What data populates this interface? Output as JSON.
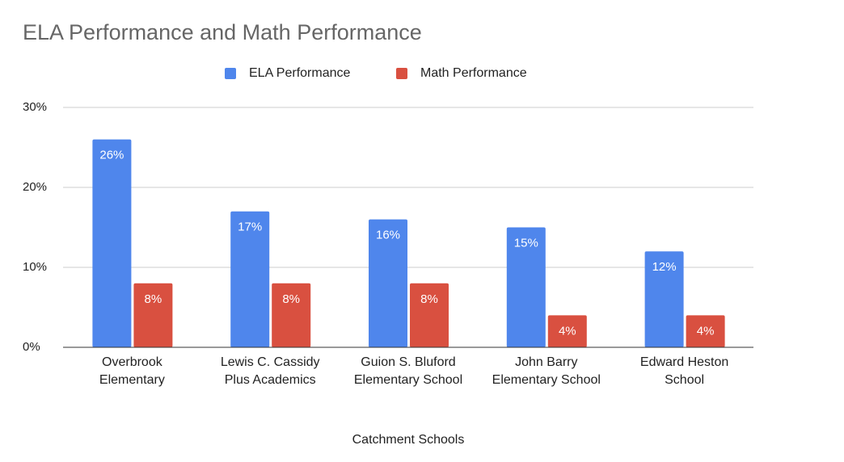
{
  "chart_data": {
    "type": "bar",
    "title": "ELA Performance and Math Performance",
    "x_label": "Catchment Schools",
    "categories": [
      "Overbrook Elementary",
      "Lewis C. Cassidy Plus Academics",
      "Guion S. Bluford Elementary School",
      "John Barry Elementary School",
      "Edward Heston School"
    ],
    "series": [
      {
        "name": "ELA Performance",
        "color": "#4f86ec",
        "values": [
          26,
          17,
          16,
          15,
          12
        ],
        "value_labels": [
          "26%",
          "17%",
          "16%",
          "15%",
          "12%"
        ]
      },
      {
        "name": "Math Performance",
        "color": "#d95040",
        "values": [
          8,
          8,
          8,
          4,
          4
        ],
        "value_labels": [
          "8%",
          "8%",
          "8%",
          "4%",
          "4%"
        ]
      }
    ],
    "ylim": [
      0,
      30
    ],
    "yticks": [
      {
        "value": 0,
        "label": "0%"
      },
      {
        "value": 10,
        "label": "10%"
      },
      {
        "value": 20,
        "label": "20%"
      },
      {
        "value": 30,
        "label": "30%"
      }
    ],
    "grid": true,
    "legend": "top"
  }
}
